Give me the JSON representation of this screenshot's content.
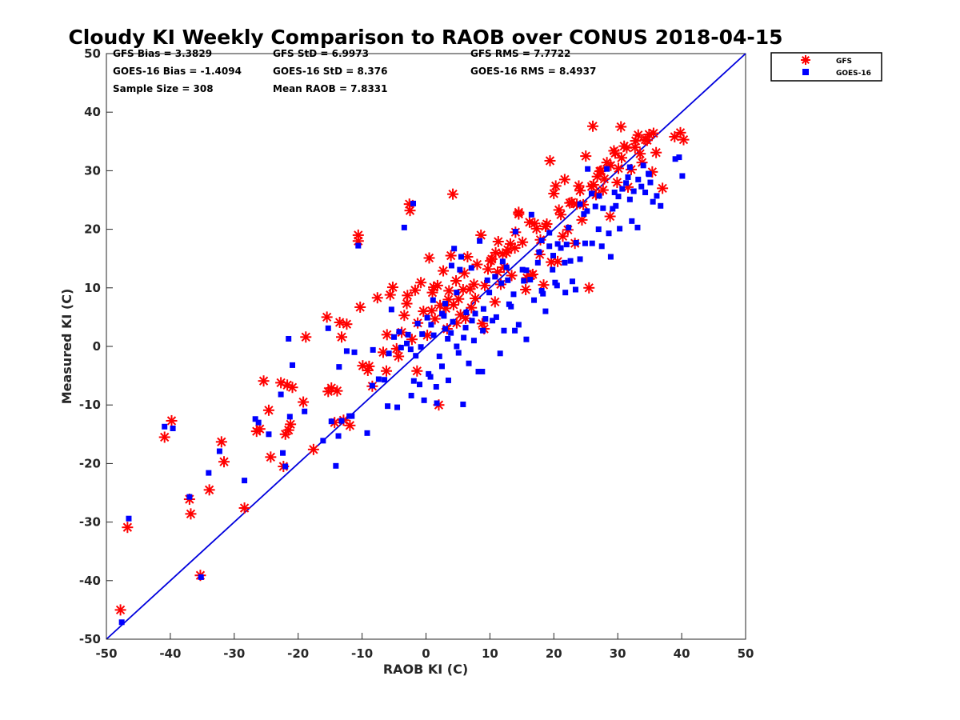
{
  "chart_data": {
    "type": "scatter",
    "title": "Cloudy KI Weekly Comparison to RAOB over CONUS 2018-04-15",
    "xlabel": "RAOB KI (C)",
    "ylabel": "Measured KI (C)",
    "xlim": [
      -50,
      50
    ],
    "ylim": [
      -50,
      50
    ],
    "xticks": [
      "-50",
      "-40",
      "-30",
      "-20",
      "-10",
      "0",
      "10",
      "20",
      "30",
      "40",
      "50"
    ],
    "yticks": [
      "-50",
      "-40",
      "-30",
      "-20",
      "-10",
      "0",
      "10",
      "20",
      "30",
      "40",
      "50"
    ],
    "grid": false,
    "legend_position": "top-right outside",
    "reference_line": {
      "x": [
        -50,
        50
      ],
      "y": [
        -50,
        50
      ],
      "color": "#0000dd"
    },
    "stats": [
      [
        "GFS Bias = 3.3829",
        "GFS StD = 6.9973",
        "GFS RMS = 7.7722"
      ],
      [
        "GOES-16 Bias = -1.4094",
        "GOES-16 StD = 8.376",
        "GOES-16 RMS = 8.4937"
      ],
      [
        "Sample Size = 308",
        "Mean RAOB = 7.8331"
      ]
    ],
    "series": [
      {
        "name": "GFS",
        "marker": "asterisk",
        "color": "#ff0000",
        "x": [
          -47.8,
          -46.7,
          -40.9,
          -39.8,
          -37.0,
          -36.8,
          -35.3,
          -33.9,
          -32.0,
          -31.6,
          -28.4,
          -26.5,
          -26.0,
          -25.4,
          -24.6,
          -24.3,
          -22.7,
          -22.3,
          -22.0,
          -21.7,
          -21.5,
          -21.2,
          -20.9,
          -19.2,
          -18.8,
          -15.5,
          -15.3,
          -14.8,
          -14.3,
          -13.9,
          -13.5,
          -13.2,
          -12.4,
          -11.9,
          -10.6,
          -10.3,
          -9.9,
          -9.1,
          -8.4,
          -7.6,
          -6.7,
          -6.1,
          -5.6,
          -5.2,
          -4.6,
          -4.3,
          -3.8,
          -3.4,
          -2.9,
          -2.5,
          -2.2,
          -1.7,
          -1.3,
          -0.8,
          -0.4,
          0.2,
          0.5,
          1.0,
          1.4,
          1.8,
          2.2,
          2.7,
          3.1,
          3.6,
          3.9,
          4.3,
          4.7,
          5.1,
          5.4,
          6.0,
          6.5,
          7.1,
          7.5,
          8.0,
          8.6,
          9.2,
          9.7,
          10.3,
          10.8,
          11.3,
          11.7,
          12.2,
          12.8,
          13.4,
          14.0,
          14.5,
          15.1,
          15.6,
          16.2,
          16.7,
          17.3,
          17.8,
          18.4,
          18.9,
          19.4,
          20.0,
          20.6,
          21.1,
          21.7,
          22.2,
          22.8,
          23.3,
          23.9,
          24.4,
          25.0,
          25.5,
          26.1,
          26.6,
          27.2,
          27.7,
          28.3,
          28.8,
          29.4,
          29.9,
          30.5,
          31.0,
          31.6,
          32.1,
          32.7,
          33.2,
          33.8,
          34.3,
          34.9,
          35.4,
          36.0,
          37.0,
          38.9,
          39.8,
          40.3,
          4.2,
          -2.6,
          -10.6,
          2.0,
          -1.4,
          6.2,
          9.1,
          12.6,
          14.5,
          17.9,
          20.3,
          24.6,
          26.2,
          28.9,
          30.6,
          3.5,
          5.8,
          8.8,
          11.2,
          13.9,
          16.4,
          18.7,
          21.4,
          23.6,
          25.9,
          27.4,
          29.6,
          32.8,
          35.6,
          -8.9,
          -6.2,
          -3.0,
          0.9,
          3.3,
          6.9,
          10.1,
          12.0,
          15.8,
          19.6,
          22.5,
          26.8,
          30.1,
          33.5,
          1.2,
          4.8,
          7.7,
          10.9,
          13.2,
          17.0,
          20.8,
          24.1,
          27.9,
          31.4,
          34.6,
          -12.9,
          -17.6
        ],
        "y": [
          -45.0,
          -30.9,
          -15.5,
          -12.7,
          -26.1,
          -28.6,
          -39.1,
          -24.5,
          -16.3,
          -19.7,
          -27.6,
          -14.5,
          -14.1,
          -5.9,
          -10.9,
          -18.9,
          -6.2,
          -20.5,
          -15.0,
          -6.6,
          -14.3,
          -13.3,
          -7.0,
          -9.5,
          1.6,
          5.0,
          -7.7,
          -7.1,
          -13.0,
          -7.6,
          4.1,
          1.6,
          3.8,
          -13.5,
          19.0,
          6.7,
          -3.3,
          -4.1,
          -6.8,
          8.3,
          -1.0,
          2.0,
          8.8,
          10.1,
          -0.4,
          -1.7,
          2.4,
          5.3,
          8.7,
          23.2,
          1.2,
          9.6,
          4.0,
          10.9,
          6.0,
          1.9,
          15.1,
          9.2,
          4.7,
          10.4,
          7.0,
          12.9,
          6.5,
          9.5,
          15.5,
          7.1,
          11.2,
          8.1,
          5.4,
          12.5,
          15.3,
          6.6,
          10.6,
          14.0,
          19.0,
          10.4,
          13.2,
          14.9,
          7.6,
          17.9,
          10.6,
          13.5,
          16.5,
          12.1,
          19.5,
          22.6,
          17.8,
          9.7,
          21.2,
          12.3,
          20.1,
          15.7,
          10.5,
          20.9,
          31.7,
          26.1,
          14.5,
          22.5,
          28.5,
          19.9,
          24.6,
          17.6,
          27.4,
          21.6,
          32.5,
          10.0,
          37.6,
          25.9,
          29.9,
          26.7,
          31.4,
          22.2,
          33.4,
          28.0,
          37.5,
          34.2,
          27.2,
          30.2,
          34.0,
          36.1,
          31.4,
          35.3,
          36.2,
          29.8,
          33.1,
          27.0,
          35.8,
          36.5,
          35.3,
          26.0,
          24.3,
          18.0,
          -10.0,
          -4.2,
          4.8,
          3.0,
          16.0,
          22.9,
          18.2,
          27.4,
          24.2,
          27.6,
          30.9,
          32.2,
          8.0,
          9.7,
          3.9,
          12.7,
          16.8,
          12.1,
          20.5,
          18.8,
          24.3,
          27.3,
          30.0,
          33.0,
          35.1,
          36.4,
          -3.4,
          -4.2,
          7.3,
          6.1,
          3.0,
          9.8,
          14.6,
          15.8,
          11.7,
          14.4,
          24.5,
          29.0,
          30.4,
          32.9,
          10.1,
          4.0,
          8.2,
          16.0,
          17.5,
          21.0,
          23.3,
          26.6,
          28.6,
          33.9,
          35.2,
          -12.6,
          -17.6
        ]
      },
      {
        "name": "GOES-16",
        "marker": "square",
        "color": "#0000ff",
        "x": [
          -47.6,
          -46.5,
          -40.9,
          -39.6,
          -37.0,
          -35.2,
          -34.0,
          -32.3,
          -28.4,
          -26.7,
          -26.2,
          -24.6,
          -22.7,
          -22.4,
          -22.0,
          -21.3,
          -20.9,
          -19.0,
          -15.3,
          -14.8,
          -14.1,
          -13.6,
          -12.4,
          -11.6,
          -10.6,
          -9.2,
          -8.3,
          -7.4,
          -6.5,
          -5.8,
          -5.0,
          -4.5,
          -3.9,
          -3.4,
          -2.8,
          -2.3,
          -1.9,
          -1.3,
          -0.8,
          -0.3,
          0.2,
          0.7,
          1.2,
          1.6,
          2.1,
          2.5,
          3.0,
          3.5,
          3.9,
          4.4,
          4.8,
          5.3,
          5.8,
          6.2,
          6.7,
          7.2,
          7.7,
          8.2,
          8.8,
          9.3,
          9.9,
          10.4,
          11.0,
          11.6,
          12.2,
          12.8,
          13.3,
          13.9,
          14.5,
          15.1,
          15.7,
          16.3,
          16.9,
          17.5,
          18.1,
          18.7,
          19.3,
          19.9,
          20.5,
          21.1,
          21.7,
          22.3,
          22.9,
          23.5,
          24.1,
          24.7,
          25.3,
          25.9,
          26.5,
          27.1,
          27.7,
          28.3,
          28.9,
          29.5,
          30.1,
          30.7,
          31.3,
          31.9,
          32.5,
          33.1,
          33.7,
          34.3,
          34.9,
          35.5,
          36.1,
          36.7,
          39.0,
          39.6,
          40.1,
          -2.0,
          -3.0,
          -11.2,
          -13.7,
          -21.5,
          1.7,
          3.0,
          4.0,
          5.5,
          7.1,
          8.4,
          9.6,
          12.6,
          14.0,
          16.5,
          18.1,
          19.3,
          20.6,
          22.0,
          24.1,
          26.0,
          28.6,
          29.7,
          31.9,
          33.2,
          34.8,
          -0.6,
          0.8,
          2.5,
          4.8,
          6.3,
          8.9,
          10.8,
          12.0,
          13.7,
          15.3,
          17.7,
          19.8,
          21.8,
          23.4,
          25.2,
          27.5,
          30.3,
          32.2,
          35.1,
          -5.4,
          -4.2,
          -1.6,
          1.1,
          2.8,
          4.2,
          5.9,
          7.5,
          9.0,
          11.8,
          13.0,
          15.7,
          18.3,
          20.2,
          22.6,
          24.9,
          27.0,
          29.2,
          31.6,
          34.0,
          -16.1,
          -13.2,
          -8.4,
          -6.0,
          -1.0,
          3.4,
          -2.4,
          0.4,
          5.1,
          -12.0
        ],
        "y": [
          -47.1,
          -29.4,
          -13.7,
          -14.0,
          -25.7,
          -39.4,
          -21.6,
          -17.9,
          -22.9,
          -12.4,
          -13.0,
          -15.0,
          -8.2,
          -18.2,
          -20.5,
          -12.0,
          -3.2,
          -11.1,
          3.1,
          -12.8,
          -20.4,
          -3.5,
          -0.8,
          -11.9,
          17.2,
          -14.8,
          -0.6,
          -5.6,
          -5.7,
          -1.2,
          1.6,
          -10.4,
          -0.2,
          20.3,
          2.0,
          -8.4,
          -5.9,
          3.9,
          -0.1,
          -9.2,
          4.9,
          -5.2,
          1.9,
          -6.9,
          -1.7,
          -3.4,
          3.0,
          -5.8,
          2.3,
          16.7,
          0.0,
          13.1,
          -9.9,
          3.2,
          -2.9,
          4.4,
          5.6,
          -4.3,
          -4.3,
          4.7,
          9.2,
          4.4,
          5.0,
          -1.2,
          2.7,
          11.3,
          6.8,
          2.7,
          3.7,
          13.1,
          1.2,
          11.4,
          7.9,
          14.3,
          9.5,
          6.0,
          17.1,
          15.5,
          10.4,
          16.8,
          14.3,
          20.3,
          11.1,
          17.7,
          24.3,
          22.6,
          30.3,
          26.1,
          23.9,
          25.7,
          23.6,
          30.3,
          15.3,
          26.3,
          25.6,
          26.9,
          27.9,
          30.6,
          26.5,
          20.3,
          27.3,
          26.3,
          29.4,
          24.7,
          25.7,
          24.0,
          32.0,
          32.3,
          29.1,
          24.4,
          0.5,
          -1.0,
          -15.3,
          1.3,
          -9.7,
          7.3,
          13.8,
          15.3,
          13.4,
          18.0,
          11.3,
          13.5,
          19.6,
          22.5,
          18.1,
          19.4,
          17.5,
          17.4,
          14.9,
          17.6,
          19.3,
          24.0,
          25.1,
          28.5,
          29.5,
          2.1,
          3.7,
          5.6,
          9.2,
          5.8,
          2.7,
          11.9,
          14.5,
          8.9,
          11.2,
          16.1,
          13.1,
          9.2,
          9.7,
          23.1,
          17.1,
          20.1,
          21.4,
          28.0,
          6.3,
          2.5,
          -1.6,
          7.9,
          5.2,
          4.2,
          1.5,
          1.0,
          6.4,
          10.8,
          7.2,
          13.0,
          9.0,
          10.9,
          14.6,
          17.6,
          20.0,
          23.5,
          28.9,
          30.9,
          -16.1,
          -12.7,
          -6.7,
          -10.2,
          -6.5,
          1.3,
          -0.5,
          -4.7,
          -1.1,
          -11.9
        ]
      }
    ]
  }
}
